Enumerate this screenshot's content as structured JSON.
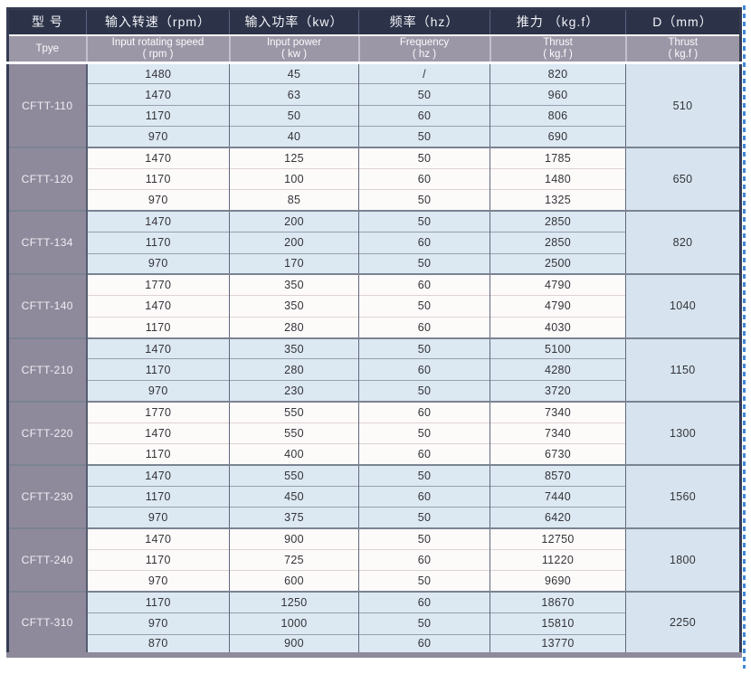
{
  "table": {
    "columns": [
      {
        "key": "model",
        "zh": "型 号",
        "en_lines": [
          "Tpye"
        ]
      },
      {
        "key": "speed",
        "zh": "输入转速（rpm）",
        "en_lines": [
          "Input rotating speed",
          "( rpm )"
        ]
      },
      {
        "key": "power",
        "zh": "输入功率（kw）",
        "en_lines": [
          "Input power",
          "( kw )"
        ]
      },
      {
        "key": "frequency",
        "zh": "频率（hz）",
        "en_lines": [
          "Frequency",
          "( hz )"
        ]
      },
      {
        "key": "thrust",
        "zh": "推力 （kg.f）",
        "en_lines": [
          "Thrust",
          "( kg.f )"
        ]
      },
      {
        "key": "diameter",
        "zh": "D（mm）",
        "en_lines": [
          "Thrust",
          "( kg.f )"
        ]
      }
    ],
    "groups": [
      {
        "model": "CFTT-110",
        "d": "510",
        "shade": "blue",
        "rows": [
          [
            "1480",
            "45",
            "/",
            "820"
          ],
          [
            "1470",
            "63",
            "50",
            "960"
          ],
          [
            "1170",
            "50",
            "60",
            "806"
          ],
          [
            "970",
            "40",
            "50",
            "690"
          ]
        ]
      },
      {
        "model": "CFTT-120",
        "d": "650",
        "shade": "white",
        "rows": [
          [
            "1470",
            "125",
            "50",
            "1785"
          ],
          [
            "1170",
            "100",
            "60",
            "1480"
          ],
          [
            "970",
            "85",
            "50",
            "1325"
          ]
        ]
      },
      {
        "model": "CFTT-134",
        "d": "820",
        "shade": "blue",
        "rows": [
          [
            "1470",
            "200",
            "50",
            "2850"
          ],
          [
            "1170",
            "200",
            "60",
            "2850"
          ],
          [
            "970",
            "170",
            "50",
            "2500"
          ]
        ]
      },
      {
        "model": "CFTT-140",
        "d": "1040",
        "shade": "white",
        "rows": [
          [
            "1770",
            "350",
            "60",
            "4790"
          ],
          [
            "1470",
            "350",
            "50",
            "4790"
          ],
          [
            "1170",
            "280",
            "60",
            "4030"
          ]
        ]
      },
      {
        "model": "CFTT-210",
        "d": "1150",
        "shade": "blue",
        "rows": [
          [
            "1470",
            "350",
            "50",
            "5100"
          ],
          [
            "1170",
            "280",
            "60",
            "4280"
          ],
          [
            "970",
            "230",
            "50",
            "3720"
          ]
        ]
      },
      {
        "model": "CFTT-220",
        "d": "1300",
        "shade": "white",
        "rows": [
          [
            "1770",
            "550",
            "60",
            "7340"
          ],
          [
            "1470",
            "550",
            "50",
            "7340"
          ],
          [
            "1170",
            "400",
            "60",
            "6730"
          ]
        ]
      },
      {
        "model": "CFTT-230",
        "d": "1560",
        "shade": "blue",
        "rows": [
          [
            "1470",
            "550",
            "50",
            "8570"
          ],
          [
            "1170",
            "450",
            "60",
            "7440"
          ],
          [
            "970",
            "375",
            "50",
            "6420"
          ]
        ]
      },
      {
        "model": "CFTT-240",
        "d": "1800",
        "shade": "white",
        "rows": [
          [
            "1470",
            "900",
            "50",
            "12750"
          ],
          [
            "1170",
            "725",
            "60",
            "11220"
          ],
          [
            "970",
            "600",
            "50",
            "9690"
          ]
        ]
      },
      {
        "model": "CFTT-310",
        "d": "2250",
        "shade": "blue",
        "rows": [
          [
            "1170",
            "1250",
            "60",
            "18670"
          ],
          [
            "970",
            "1000",
            "50",
            "15810"
          ],
          [
            "870",
            "900",
            "60",
            "13770"
          ]
        ]
      }
    ]
  },
  "palette": {
    "header_navy": "#2c3349",
    "header_gray": "#9c97a7",
    "model_column": "#8e8a9c",
    "row_blue": "#dce8f2",
    "row_white": "#fdfbfa",
    "d_column_blue": "#d7e4ef",
    "selection_dash_blue": "#3f86d8"
  },
  "decorations": {
    "selection_line": "blue-dashed-vertical-right-edge"
  }
}
